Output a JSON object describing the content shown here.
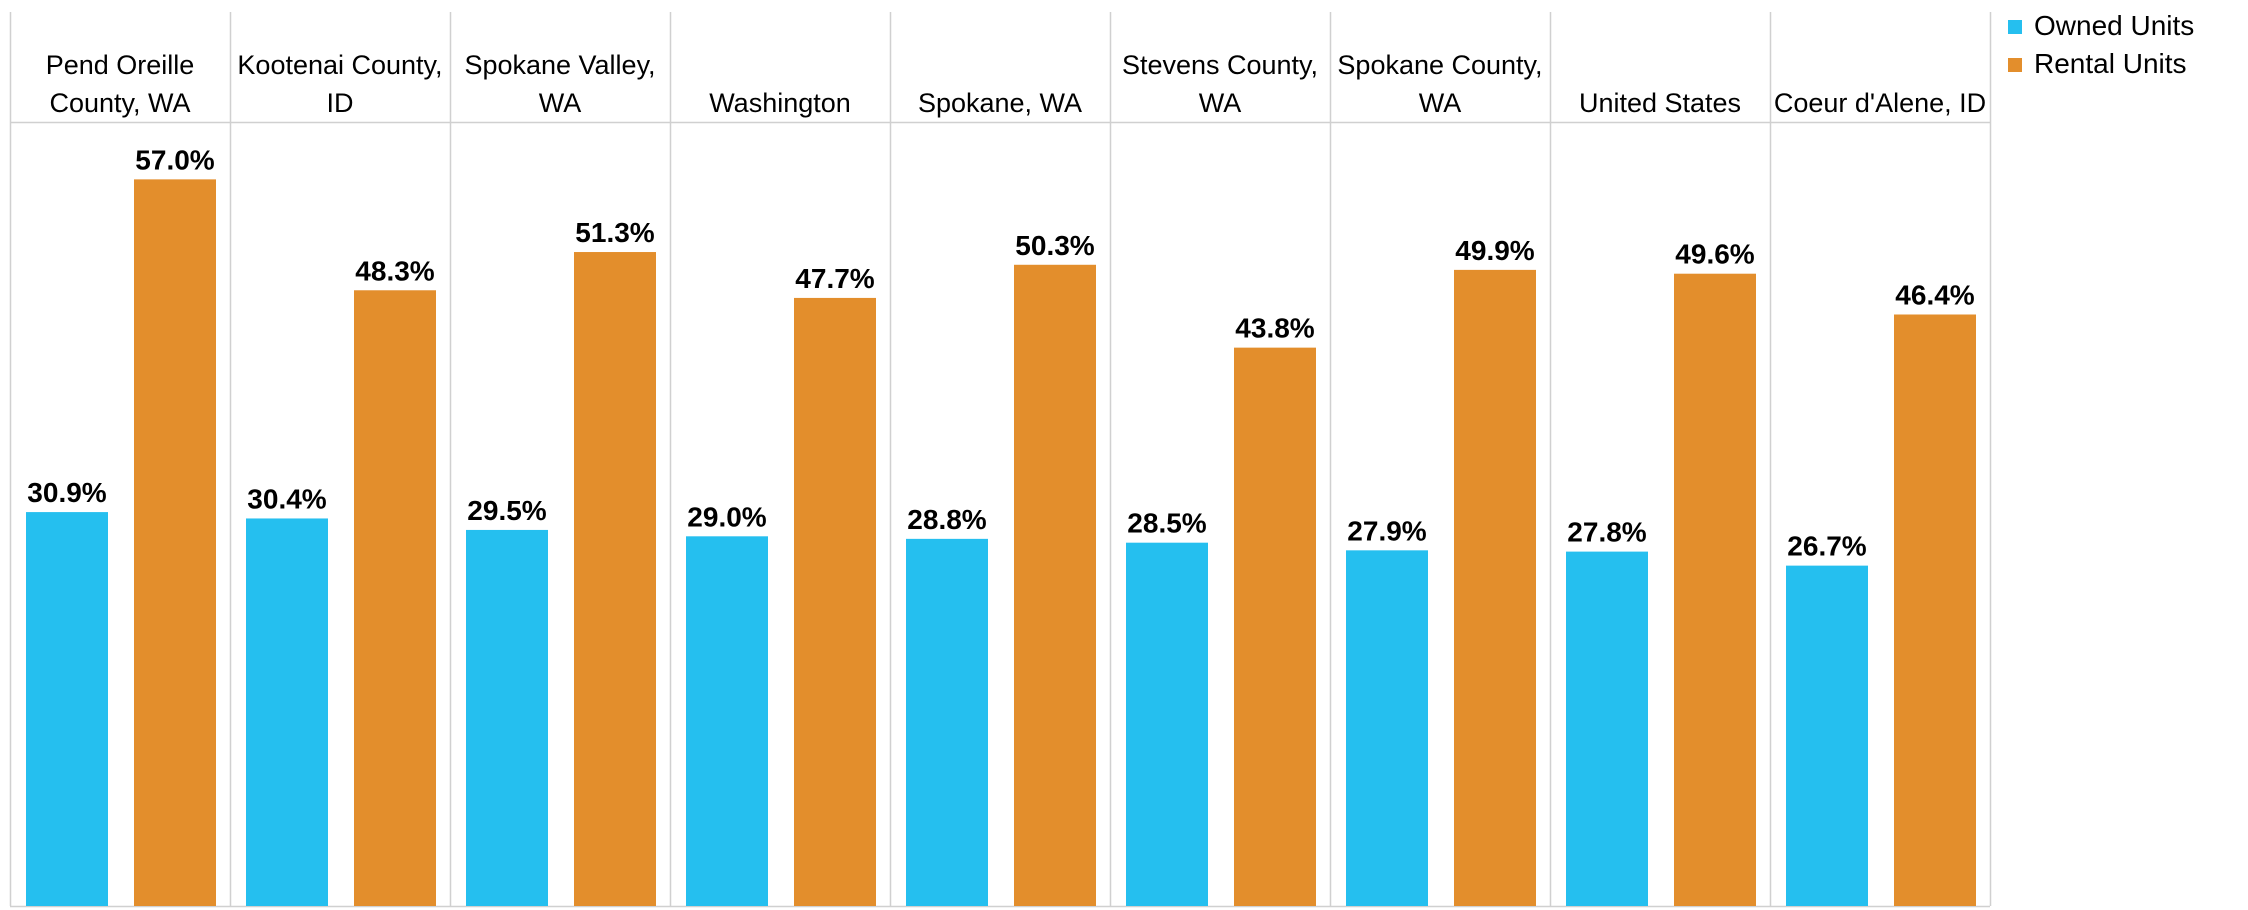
{
  "chart_data": {
    "type": "bar",
    "title": "",
    "xlabel": "",
    "ylabel": "",
    "ylim": [
      0,
      61.5
    ],
    "grid": false,
    "legend_position": "top-right",
    "categories": [
      [
        "Pend Oreille",
        "County, WA"
      ],
      [
        "Kootenai County,",
        "ID"
      ],
      [
        "Spokane Valley,",
        "WA"
      ],
      [
        "Washington"
      ],
      [
        "Spokane, WA"
      ],
      [
        "Stevens County,",
        "WA"
      ],
      [
        "Spokane County,",
        "WA"
      ],
      [
        "United States"
      ],
      [
        "Coeur d'Alene, ID"
      ]
    ],
    "series": [
      {
        "name": "Owned Units",
        "color": "#25BFEF",
        "values": [
          30.9,
          30.4,
          29.5,
          29.0,
          28.8,
          28.5,
          27.9,
          27.8,
          26.7
        ],
        "labels": [
          "30.9%",
          "30.4%",
          "29.5%",
          "29.0%",
          "28.8%",
          "28.5%",
          "27.9%",
          "27.8%",
          "26.7%"
        ]
      },
      {
        "name": "Rental Units",
        "color": "#E38E2C",
        "values": [
          57.0,
          48.3,
          51.3,
          47.7,
          50.3,
          43.8,
          49.9,
          49.6,
          46.4
        ],
        "labels": [
          "57.0%",
          "48.3%",
          "51.3%",
          "47.7%",
          "50.3%",
          "43.8%",
          "49.9%",
          "49.6%",
          "46.4%"
        ]
      }
    ]
  }
}
